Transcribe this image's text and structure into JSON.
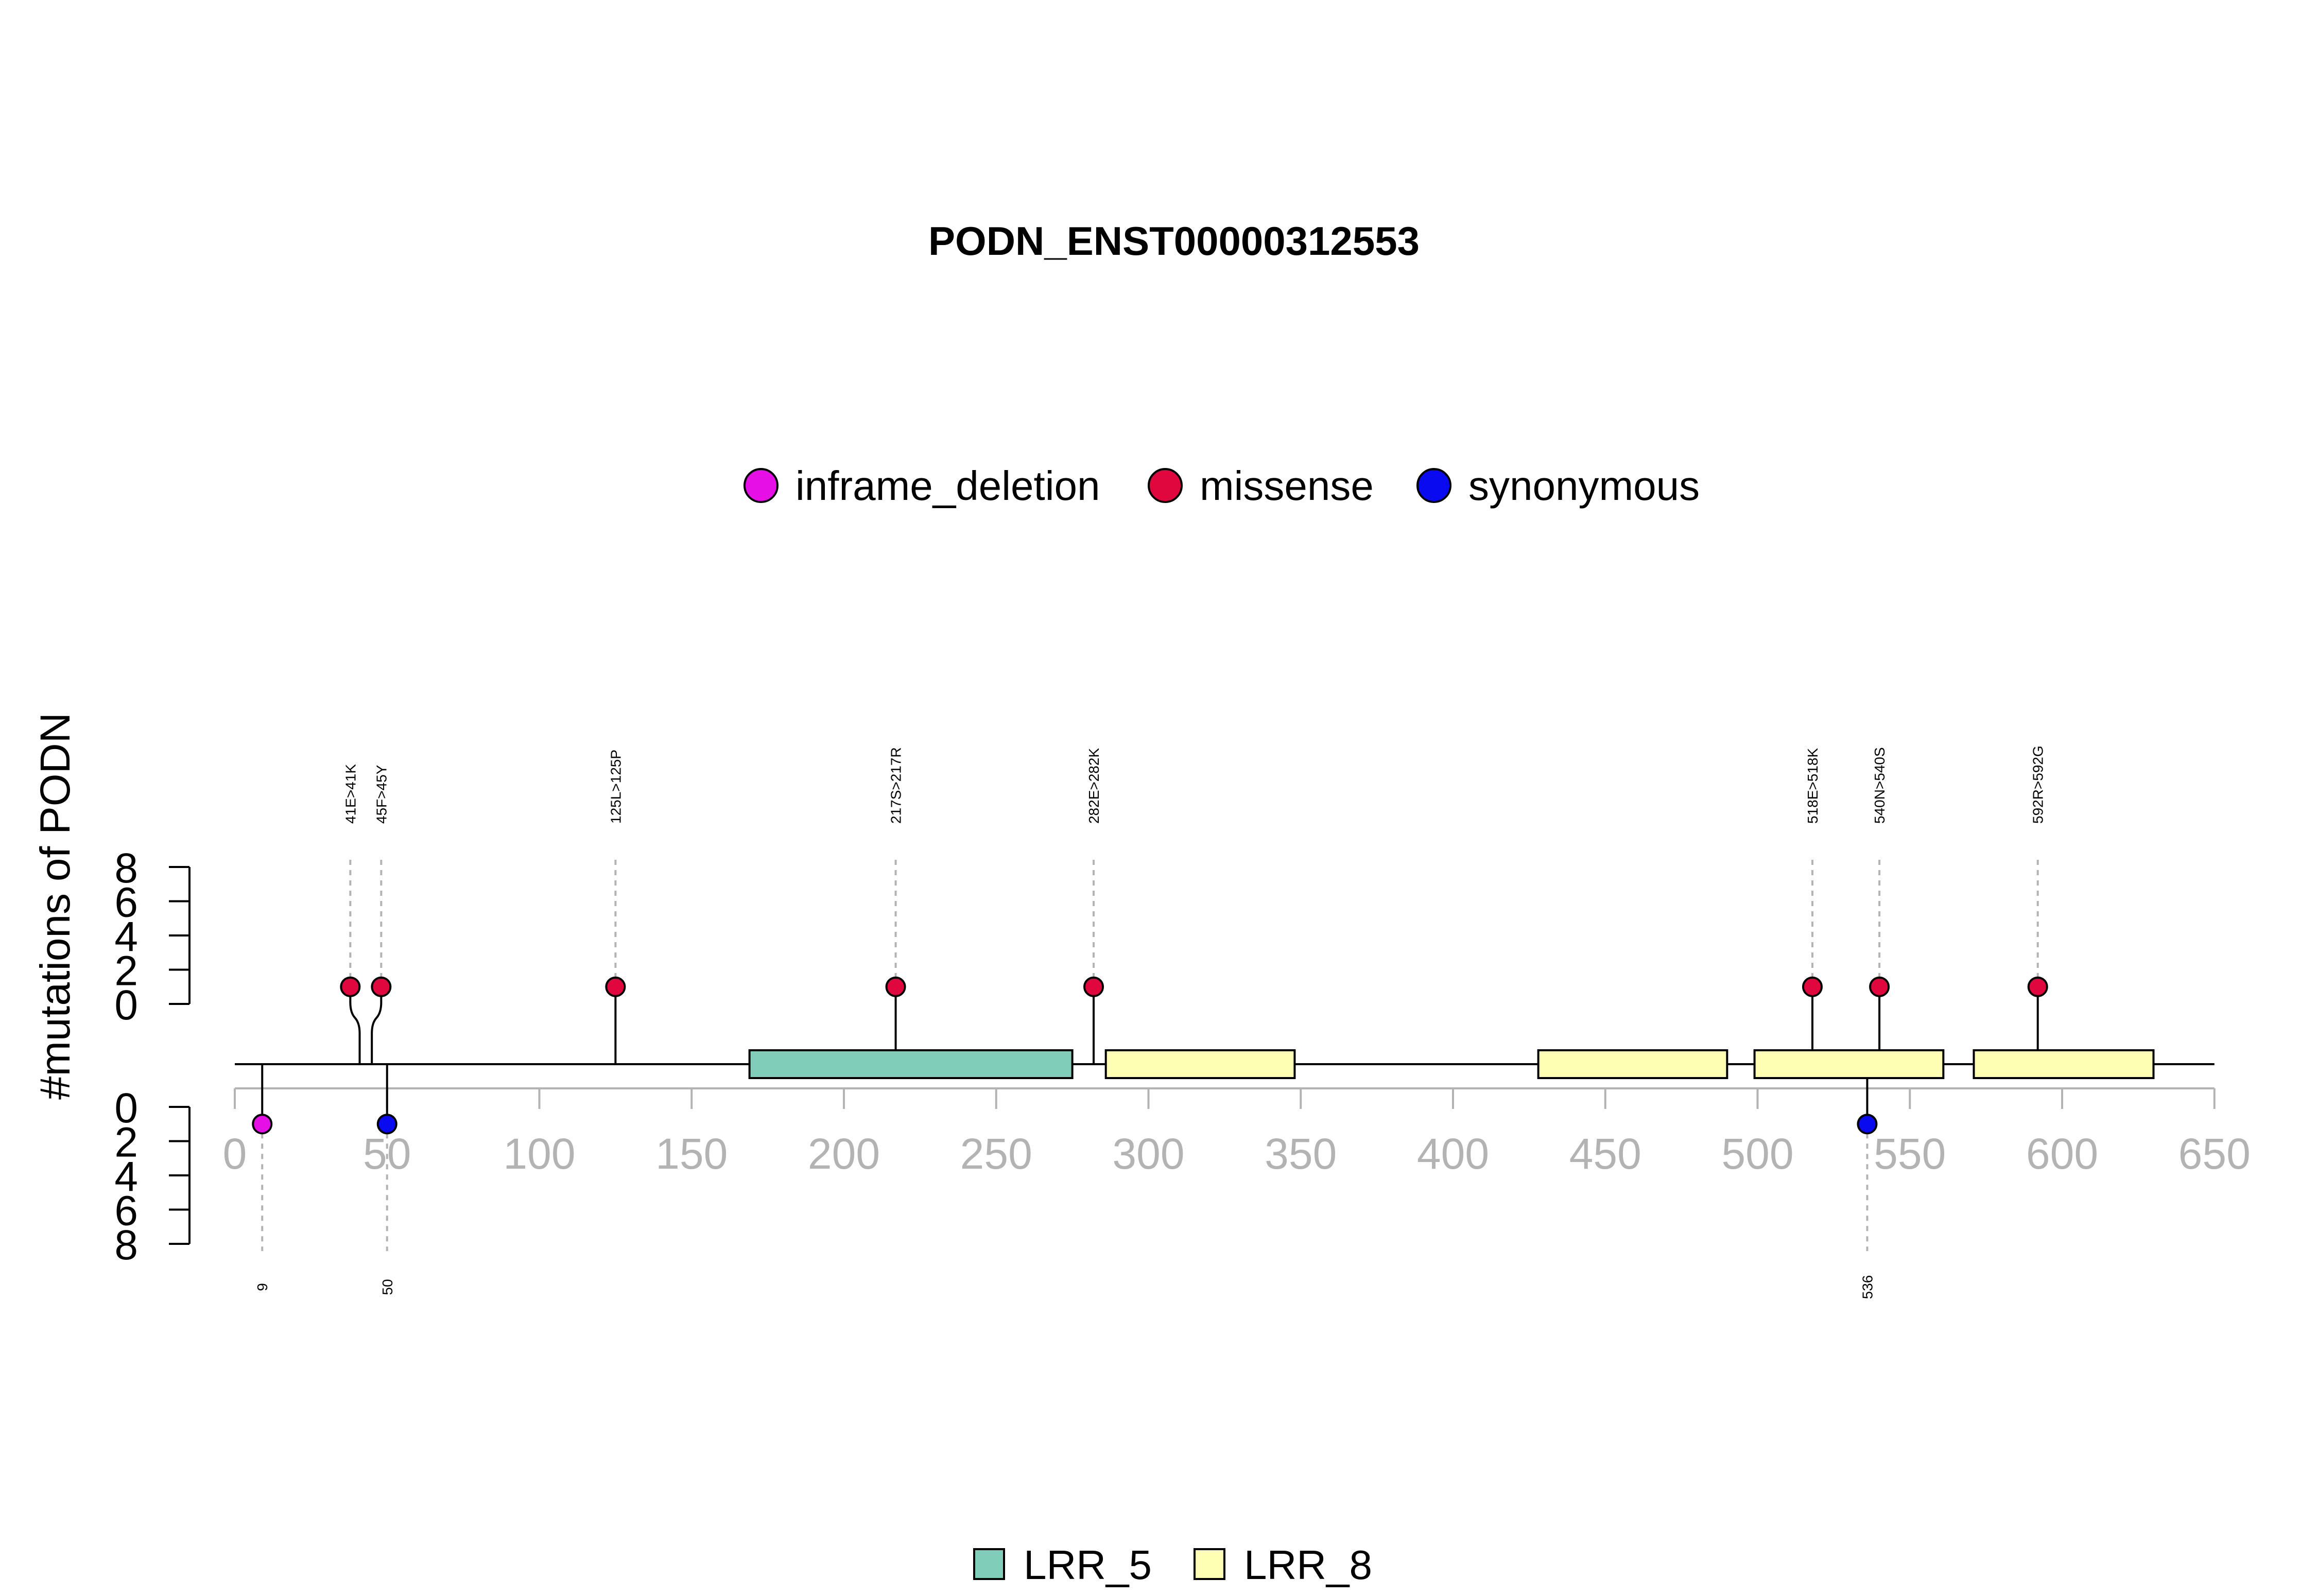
{
  "chart_data": {
    "type": "lollipop",
    "title": "PODN_ENST00000312553",
    "ylabel": "#mutations of PODN",
    "xlim": [
      0,
      650
    ],
    "x_ticks": [
      0,
      50,
      100,
      150,
      200,
      250,
      300,
      350,
      400,
      450,
      500,
      550,
      600,
      650
    ],
    "y_ticks": [
      0,
      2,
      4,
      6,
      8
    ],
    "ylim": [
      0,
      8
    ],
    "mutation_legend": [
      {
        "name": "inframe_deletion",
        "color": "#e60fe6"
      },
      {
        "name": "missense",
        "color": "#e0073f"
      },
      {
        "name": "synonymous",
        "color": "#0a0af0"
      }
    ],
    "domain_legend": [
      {
        "name": "LRR_5",
        "color": "#80cdb9"
      },
      {
        "name": "LRR_8",
        "color": "#ffffb3"
      }
    ],
    "domains": [
      {
        "name": "LRR_5",
        "start": 169,
        "end": 275
      },
      {
        "name": "LRR_8",
        "start": 286,
        "end": 348
      },
      {
        "name": "LRR_8",
        "start": 428,
        "end": 490
      },
      {
        "name": "LRR_8",
        "start": 499,
        "end": 561
      },
      {
        "name": "LRR_8",
        "start": 571,
        "end": 630
      }
    ],
    "top_mutations": [
      {
        "label": "41E>41K",
        "position": 41,
        "count": 1,
        "type": "missense"
      },
      {
        "label": "45F>45Y",
        "position": 45,
        "count": 1,
        "type": "missense"
      },
      {
        "label": "125L>125P",
        "position": 125,
        "count": 1,
        "type": "missense"
      },
      {
        "label": "217S>217R",
        "position": 217,
        "count": 1,
        "type": "missense"
      },
      {
        "label": "282E>282K",
        "position": 282,
        "count": 1,
        "type": "missense"
      },
      {
        "label": "518E>518K",
        "position": 518,
        "count": 1,
        "type": "missense"
      },
      {
        "label": "540N>540S",
        "position": 540,
        "count": 1,
        "type": "missense"
      },
      {
        "label": "592R>592G",
        "position": 592,
        "count": 1,
        "type": "missense"
      }
    ],
    "bottom_mutations": [
      {
        "label": "9",
        "position": 9,
        "count": 1,
        "type": "inframe_deletion"
      },
      {
        "label": "50",
        "position": 50,
        "count": 1,
        "type": "synonymous"
      },
      {
        "label": "536",
        "position": 536,
        "count": 1,
        "type": "synonymous"
      }
    ]
  }
}
